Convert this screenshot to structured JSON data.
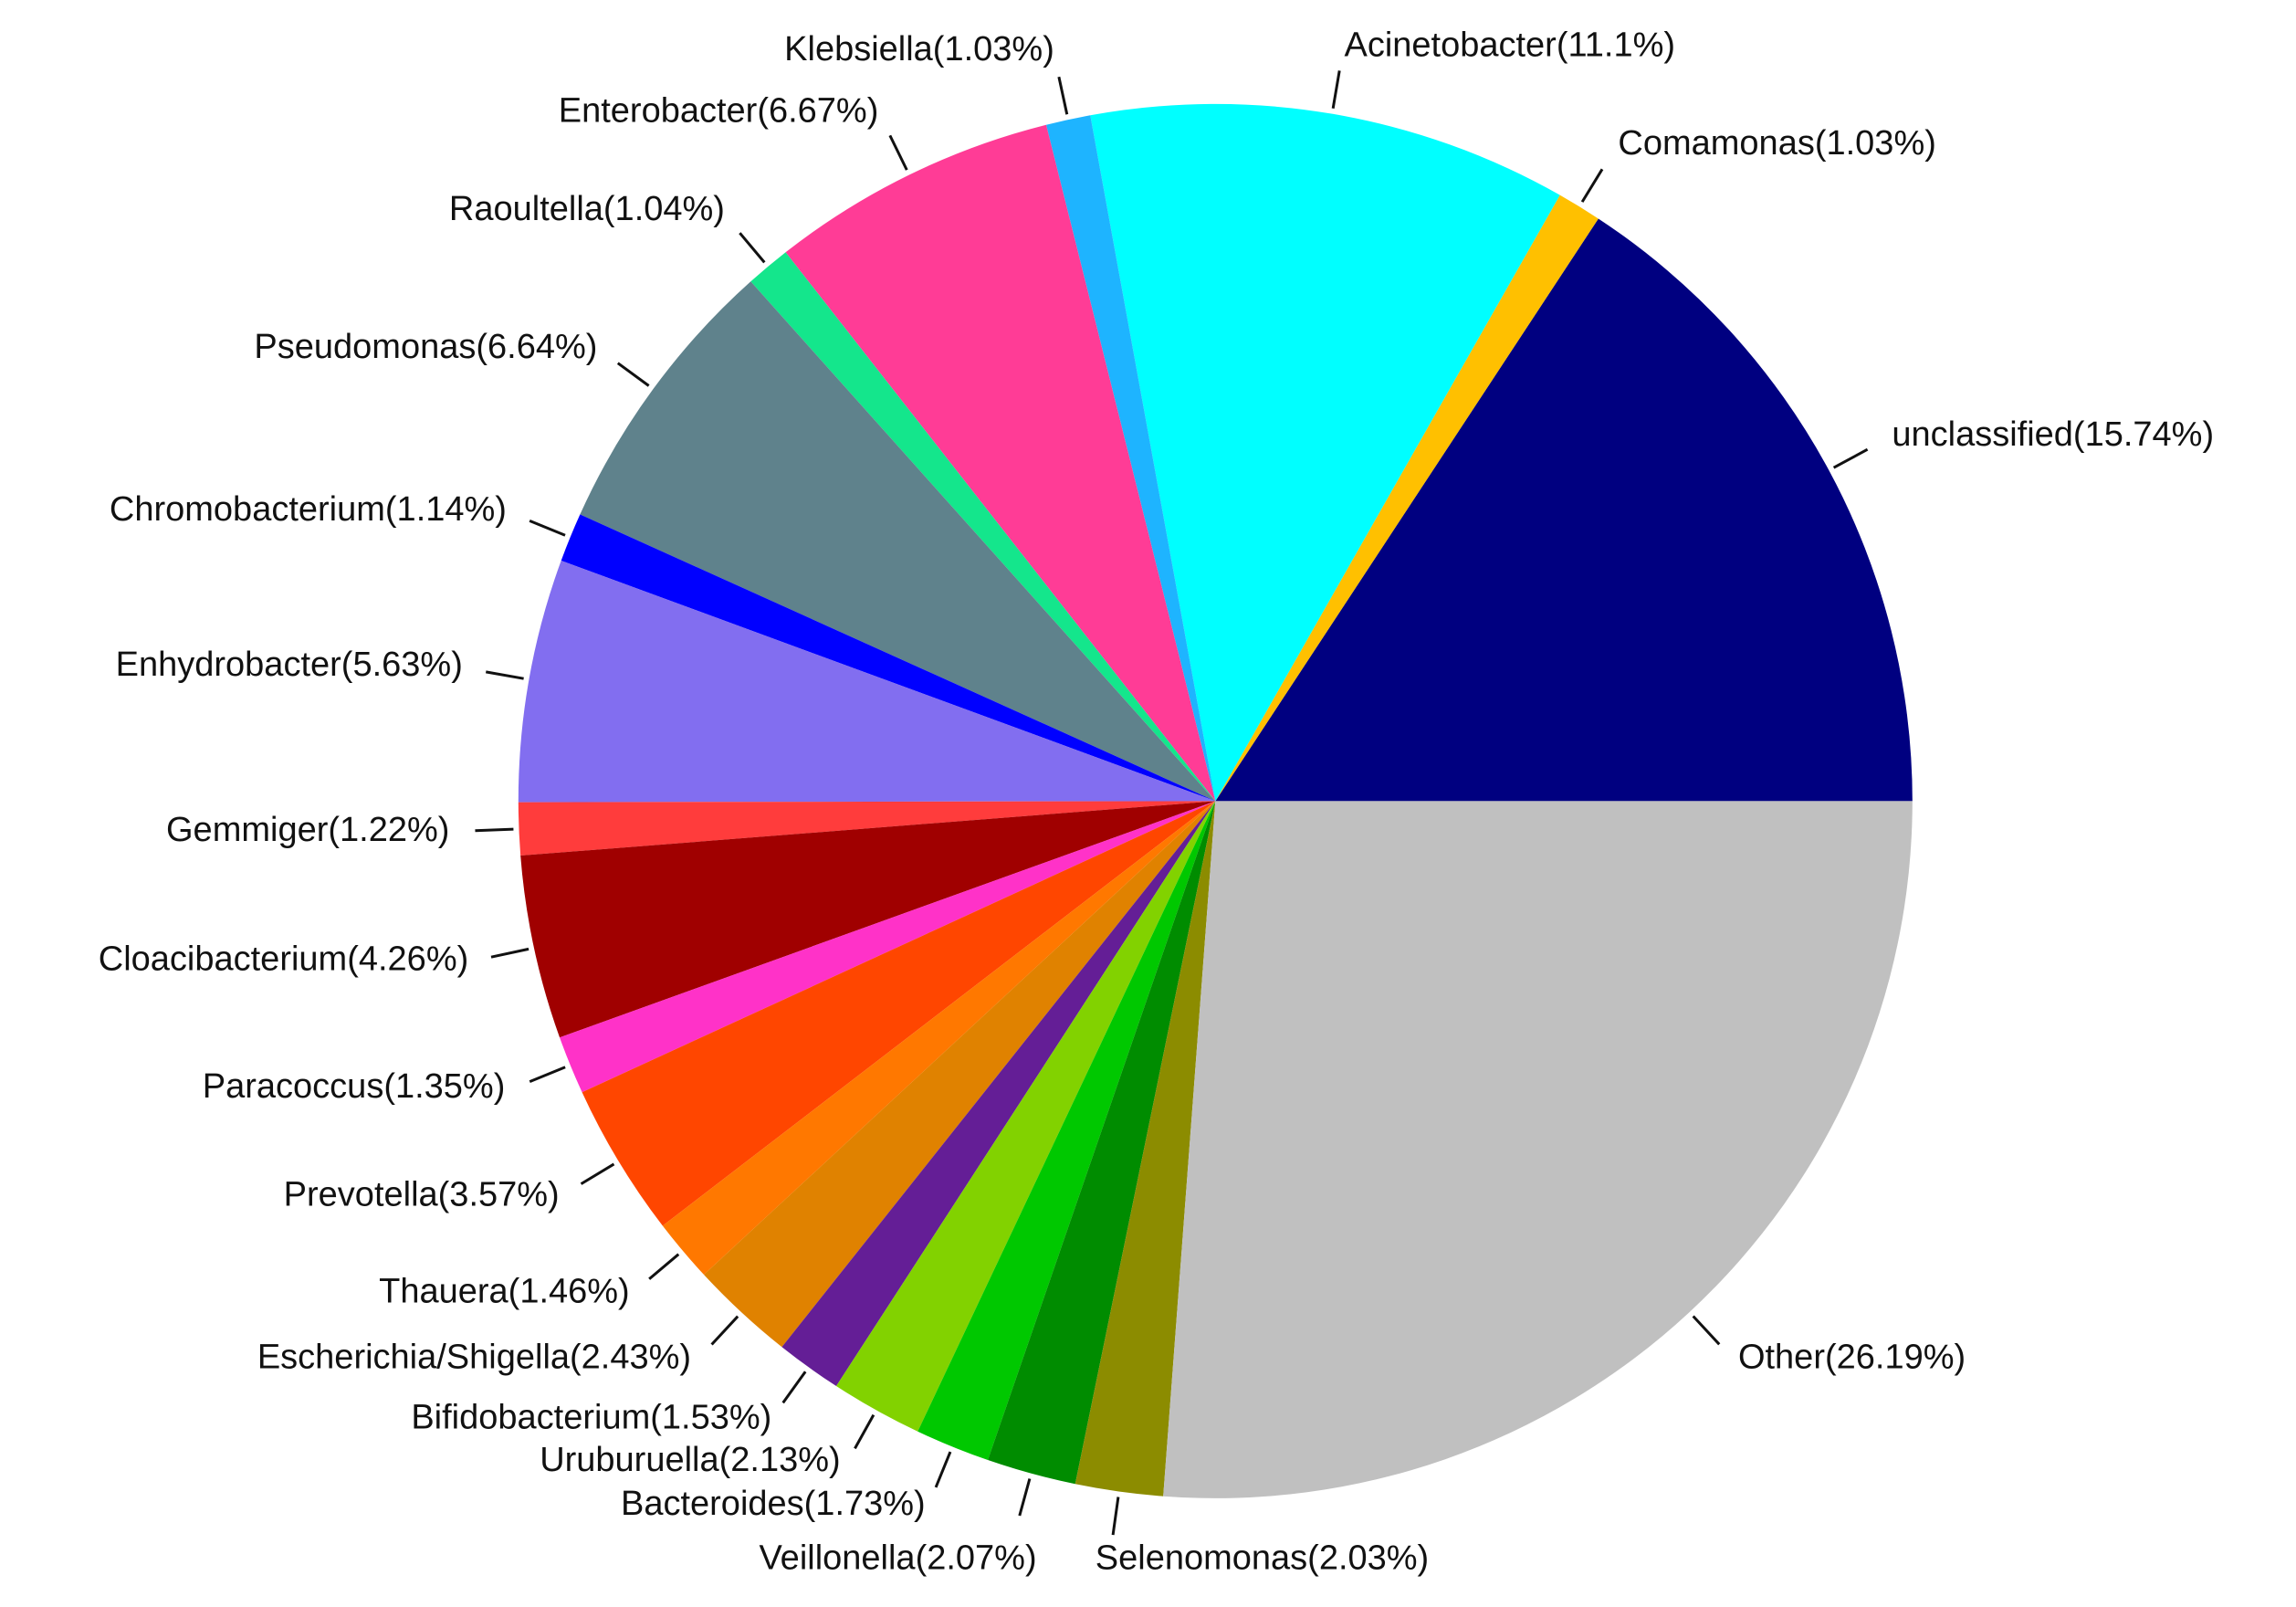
{
  "chart_data": {
    "type": "pie",
    "categories": [
      "unclassified(15.74%)",
      "Comamonas(1.03%)",
      "Acinetobacter(11.1%)",
      "Klebsiella(1.03%)",
      "Enterobacter(6.67%)",
      "Raoultella(1.04%)",
      "Pseudomonas(6.64%)",
      "Chromobacterium(1.14%)",
      "Enhydrobacter(5.63%)",
      "Gemmiger(1.22%)",
      "Cloacibacterium(4.26%)",
      "Paracoccus(1.35%)",
      "Prevotella(3.57%)",
      "Thauera(1.46%)",
      "Escherichia/Shigella(2.43%)",
      "Bifidobacterium(1.53%)",
      "Uruburuella(2.13%)",
      "Bacteroides(1.73%)",
      "Veillonella(2.07%)",
      "Selenomonas(2.03%)",
      "Other(26.19%)"
    ],
    "values": [
      15.74,
      1.03,
      11.1,
      1.03,
      6.67,
      1.04,
      6.64,
      1.14,
      5.63,
      1.22,
      4.26,
      1.35,
      3.57,
      1.46,
      2.43,
      1.53,
      2.13,
      1.73,
      2.07,
      2.03,
      26.19
    ],
    "colors": [
      "#000080",
      "#FFC000",
      "#00FFFF",
      "#1EB4FF",
      "#FF3C96",
      "#14E68C",
      "#5F828C",
      "#0000FF",
      "#826EF0",
      "#FF3C3C",
      "#A00000",
      "#FF32C8",
      "#FF4600",
      "#FF7800",
      "#E08200",
      "#641E96",
      "#82D200",
      "#00C800",
      "#008C00",
      "#8C8C00",
      "#C0C0C0"
    ]
  }
}
